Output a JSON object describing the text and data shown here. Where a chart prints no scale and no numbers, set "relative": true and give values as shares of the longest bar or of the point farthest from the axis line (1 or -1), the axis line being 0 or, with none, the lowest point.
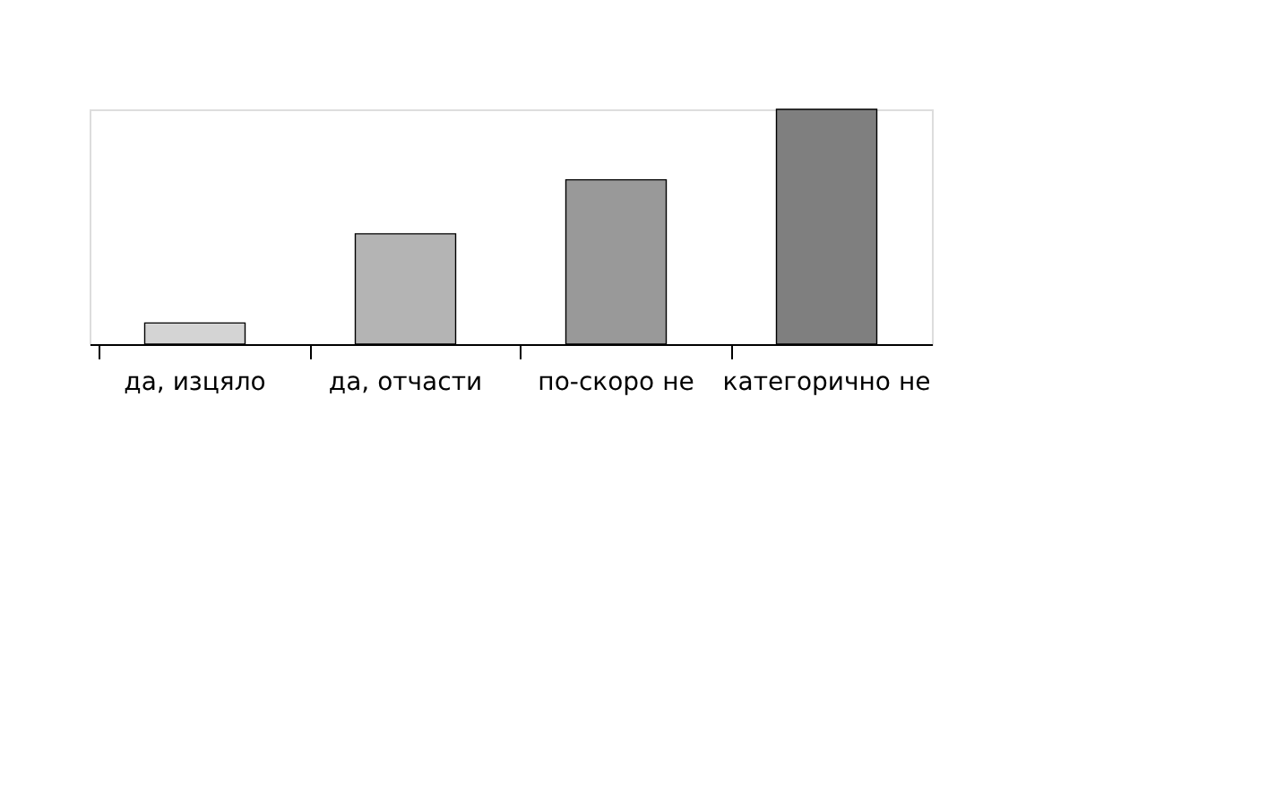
{
  "chart_data": {
    "type": "bar",
    "relative": true,
    "categories": [
      "да, изцяло",
      "да, отчасти",
      "по-скоро не",
      "категорично не"
    ],
    "values": [
      0.09,
      0.47,
      0.7,
      1
    ],
    "colors": [
      "#d4d4d4",
      "#b4b4b4",
      "#999999",
      "#7f7f7f"
    ],
    "grid": false
  }
}
